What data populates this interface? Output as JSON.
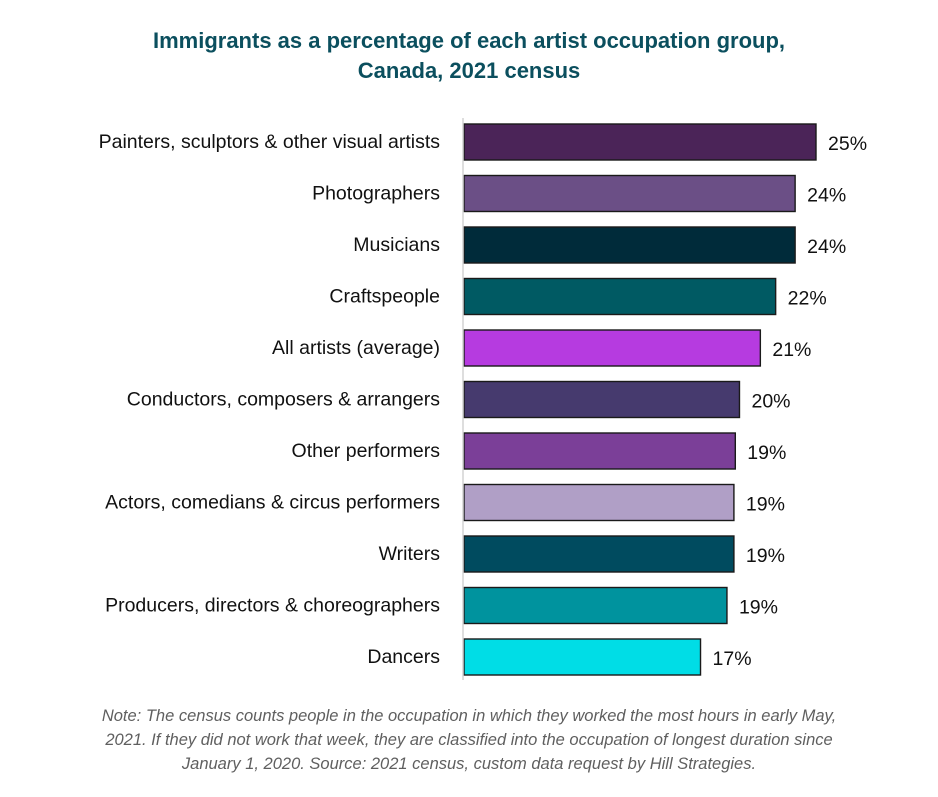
{
  "chart_data": {
    "type": "bar",
    "orientation": "horizontal",
    "title": "Immigrants as a percentage of each artist occupation group, Canada, 2021 census",
    "title_lines": [
      "Immigrants as a percentage of each artist occupation group,",
      "Canada, 2021 census"
    ],
    "categories": [
      "Painters, sculptors & other visual artists",
      "Photographers",
      "Musicians",
      "Craftspeople",
      "All artists (average)",
      "Conductors, composers & arrangers",
      "Other performers",
      "Actors, comedians & circus performers",
      "Writers",
      "Producers, directors & choreographers",
      "Dancers"
    ],
    "values": [
      25.3,
      23.8,
      23.8,
      22.4,
      21.3,
      19.8,
      19.5,
      19.4,
      19.4,
      18.9,
      17.0
    ],
    "data_labels": [
      "25%",
      "24%",
      "24%",
      "22%",
      "21%",
      "20%",
      "19%",
      "19%",
      "19%",
      "19%",
      "17%"
    ],
    "bar_colors": [
      "#4b2458",
      "#6b4f86",
      "#002b3a",
      "#005a63",
      "#b63be0",
      "#463a6e",
      "#7b3f98",
      "#b09fc6",
      "#004b5f",
      "#00939e",
      "#00dde6"
    ],
    "xlim": [
      0,
      25.3
    ],
    "grid": false,
    "legend": "none",
    "note_lines": [
      "Note: The census counts people in the occupation in which they worked the most hours in early May,",
      "2021. If they did not work that week, they are classified into the occupation of longest duration since",
      "January 1, 2020. Source: 2021 census, custom data request by Hill Strategies."
    ]
  }
}
